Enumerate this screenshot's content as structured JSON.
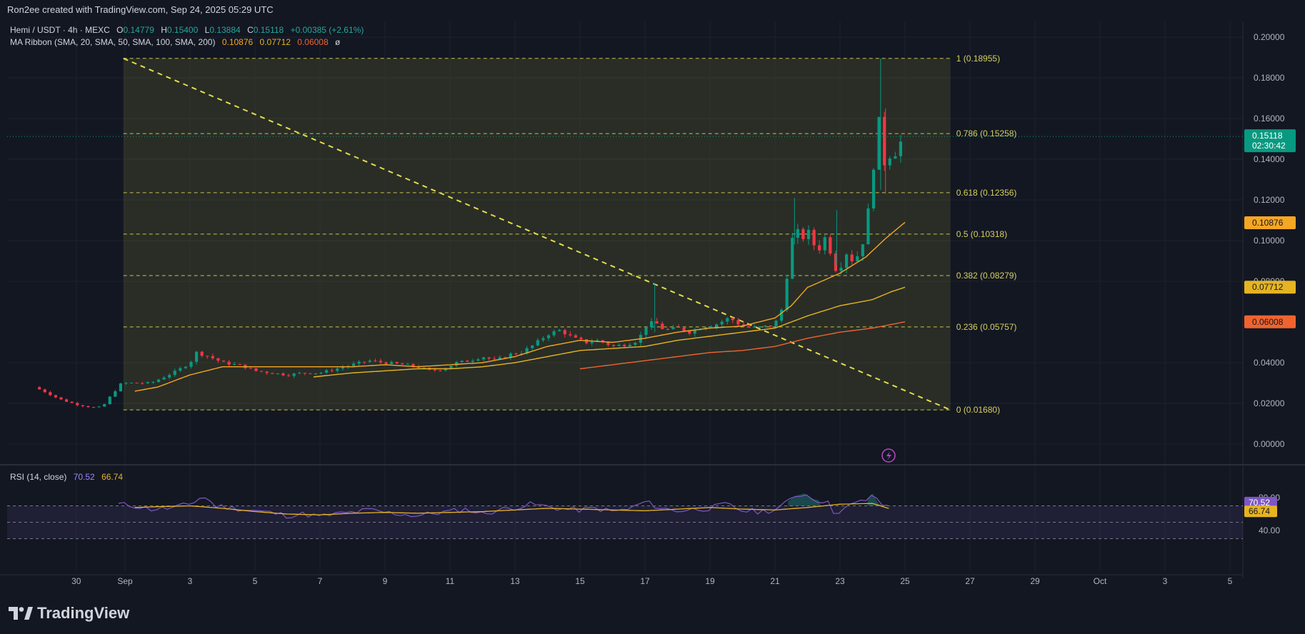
{
  "credit": "Ron2ee created with TradingView.com, Sep 24, 2025 05:29 UTC",
  "legend": {
    "symbol": "Hemi / USDT · 4h · MEXC",
    "o_label": "O",
    "o_val": "0.14779",
    "h_label": "H",
    "h_val": "0.15400",
    "l_label": "L",
    "l_val": "0.13884",
    "c_label": "C",
    "c_val": "0.15118",
    "change": "+0.00385 (+2.61%)",
    "ma_label": "MA Ribbon (SMA, 20, SMA, 50, SMA, 100, SMA, 200)",
    "ma1": "0.10876",
    "ma2": "0.07712",
    "ma3": "0.06008",
    "ma4": "ø",
    "rsi_label": "RSI (14, close)",
    "rsi1": "70.52",
    "rsi2": "66.74"
  },
  "brand": "TradingView",
  "chart_data": {
    "type": "candlestick",
    "timeframe": "4h",
    "price_axis": {
      "ticks": [
        "0.20000",
        "0.18000",
        "0.16000",
        "0.14000",
        "0.12000",
        "0.10000",
        "0.08000",
        "0.04000",
        "0.02000",
        "0.00000"
      ],
      "range": [
        0.0,
        0.205
      ]
    },
    "rsi_axis": {
      "ticks": [
        "80.00",
        "40.00"
      ],
      "range": [
        30,
        86
      ],
      "levels": [
        70,
        50,
        30
      ]
    },
    "x_axis": {
      "labels": [
        {
          "t": -1.5,
          "text": "30"
        },
        {
          "t": 0,
          "text": "Sep"
        },
        {
          "t": 2,
          "text": "3"
        },
        {
          "t": 4,
          "text": "5"
        },
        {
          "t": 6,
          "text": "7"
        },
        {
          "t": 8,
          "text": "9"
        },
        {
          "t": 10,
          "text": "11"
        },
        {
          "t": 12,
          "text": "13"
        },
        {
          "t": 14,
          "text": "15"
        },
        {
          "t": 16,
          "text": "17"
        },
        {
          "t": 18,
          "text": "19"
        },
        {
          "t": 20,
          "text": "21"
        },
        {
          "t": 22,
          "text": "23"
        },
        {
          "t": 24,
          "text": "25"
        },
        {
          "t": 26,
          "text": "27"
        },
        {
          "t": 28,
          "text": "29"
        },
        {
          "t": 30,
          "text": "Oct"
        },
        {
          "t": 32,
          "text": "3"
        },
        {
          "t": 34,
          "text": "5"
        }
      ],
      "range": [
        -3.2,
        34.0
      ]
    },
    "fib": {
      "x_start": -0.05,
      "x_end": 25.4,
      "levels": [
        {
          "ratio": "1",
          "price": 0.18955,
          "label": "1 (0.18955)"
        },
        {
          "ratio": "0.786",
          "price": 0.15258,
          "label": "0.786 (0.15258)"
        },
        {
          "ratio": "0.618",
          "price": 0.12356,
          "label": "0.618 (0.12356)"
        },
        {
          "ratio": "0.5",
          "price": 0.10318,
          "label": "0.5 (0.10318)"
        },
        {
          "ratio": "0.382",
          "price": 0.08279,
          "label": "0.382 (0.08279)"
        },
        {
          "ratio": "0.236",
          "price": 0.05757,
          "label": "0.236 (0.05757)"
        },
        {
          "ratio": "0",
          "price": 0.0168,
          "label": "0 (0.01680)"
        }
      ]
    },
    "trendline": {
      "t1": -0.05,
      "p1": 0.18955,
      "t2": 25.4,
      "p2": 0.0168
    },
    "price_anchors": [
      [
        -2.8,
        0.028
      ],
      [
        -2.5,
        0.026
      ],
      [
        -2.0,
        0.022
      ],
      [
        -1.5,
        0.0195
      ],
      [
        -1.0,
        0.018
      ],
      [
        -0.7,
        0.0182
      ],
      [
        -0.4,
        0.0245
      ],
      [
        -0.1,
        0.03
      ],
      [
        0.4,
        0.03
      ],
      [
        0.8,
        0.03
      ],
      [
        1.2,
        0.033
      ],
      [
        1.6,
        0.036
      ],
      [
        2.0,
        0.04
      ],
      [
        2.2,
        0.045
      ],
      [
        2.6,
        0.043
      ],
      [
        3.0,
        0.04
      ],
      [
        3.6,
        0.0385
      ],
      [
        4.0,
        0.036
      ],
      [
        4.5,
        0.035
      ],
      [
        5.0,
        0.034
      ],
      [
        5.5,
        0.035
      ],
      [
        6.0,
        0.035
      ],
      [
        6.5,
        0.037
      ],
      [
        7.0,
        0.039
      ],
      [
        7.5,
        0.041
      ],
      [
        8.0,
        0.04
      ],
      [
        8.6,
        0.039
      ],
      [
        9.0,
        0.038
      ],
      [
        9.4,
        0.036
      ],
      [
        9.8,
        0.037
      ],
      [
        10.2,
        0.04
      ],
      [
        10.6,
        0.041
      ],
      [
        11.0,
        0.043
      ],
      [
        11.4,
        0.041
      ],
      [
        11.8,
        0.044
      ],
      [
        12.2,
        0.045
      ],
      [
        12.6,
        0.049
      ],
      [
        13.0,
        0.054
      ],
      [
        13.4,
        0.056
      ],
      [
        13.8,
        0.052
      ],
      [
        14.2,
        0.05
      ],
      [
        14.6,
        0.051
      ],
      [
        15.0,
        0.048
      ],
      [
        15.4,
        0.049
      ],
      [
        15.8,
        0.051
      ],
      [
        16.0,
        0.058
      ],
      [
        16.3,
        0.06
      ],
      [
        16.6,
        0.056
      ],
      [
        17.0,
        0.057
      ],
      [
        17.4,
        0.055
      ],
      [
        17.8,
        0.058
      ],
      [
        18.2,
        0.059
      ],
      [
        18.6,
        0.062
      ],
      [
        19.0,
        0.058
      ],
      [
        19.4,
        0.057
      ],
      [
        19.8,
        0.058
      ],
      [
        20.0,
        0.059
      ],
      [
        20.2,
        0.066
      ],
      [
        20.4,
        0.086
      ],
      [
        20.6,
        0.108
      ],
      [
        20.8,
        0.1
      ],
      [
        21.0,
        0.105
      ],
      [
        21.2,
        0.098
      ],
      [
        21.4,
        0.096
      ],
      [
        21.6,
        0.104
      ],
      [
        21.8,
        0.086
      ],
      [
        22.0,
        0.087
      ],
      [
        22.2,
        0.094
      ],
      [
        22.4,
        0.09
      ],
      [
        22.6,
        0.094
      ],
      [
        22.8,
        0.105
      ],
      [
        23.0,
        0.133
      ],
      [
        23.2,
        0.158
      ],
      [
        23.3,
        0.133
      ],
      [
        23.45,
        0.145
      ],
      [
        23.6,
        0.14
      ],
      [
        23.8,
        0.147
      ],
      [
        24.0,
        0.151
      ]
    ],
    "series": [
      {
        "name": "SMA 20",
        "color": "#f5a623",
        "anchors": [
          [
            0.3,
            0.026
          ],
          [
            1.0,
            0.028
          ],
          [
            2.0,
            0.034
          ],
          [
            3.0,
            0.038
          ],
          [
            4.0,
            0.038
          ],
          [
            5.0,
            0.038
          ],
          [
            6.0,
            0.038
          ],
          [
            7.0,
            0.038
          ],
          [
            8.0,
            0.039
          ],
          [
            9.0,
            0.038
          ],
          [
            10.0,
            0.039
          ],
          [
            11.0,
            0.04
          ],
          [
            12.0,
            0.043
          ],
          [
            13.0,
            0.048
          ],
          [
            14.0,
            0.051
          ],
          [
            15.0,
            0.05
          ],
          [
            16.0,
            0.052
          ],
          [
            17.0,
            0.055
          ],
          [
            18.0,
            0.057
          ],
          [
            19.0,
            0.058
          ],
          [
            20.0,
            0.062
          ],
          [
            20.5,
            0.068
          ],
          [
            21.0,
            0.077
          ],
          [
            22.0,
            0.084
          ],
          [
            22.8,
            0.092
          ],
          [
            23.4,
            0.101
          ],
          [
            24.0,
            0.109
          ]
        ]
      },
      {
        "name": "SMA 50",
        "color": "#e6b422",
        "anchors": [
          [
            5.8,
            0.033
          ],
          [
            7.0,
            0.035
          ],
          [
            8.0,
            0.036
          ],
          [
            9.0,
            0.037
          ],
          [
            10.0,
            0.037
          ],
          [
            11.0,
            0.038
          ],
          [
            12.0,
            0.04
          ],
          [
            13.0,
            0.043
          ],
          [
            14.0,
            0.046
          ],
          [
            15.0,
            0.047
          ],
          [
            16.0,
            0.048
          ],
          [
            17.0,
            0.051
          ],
          [
            18.0,
            0.053
          ],
          [
            19.0,
            0.055
          ],
          [
            20.0,
            0.057
          ],
          [
            21.0,
            0.063
          ],
          [
            22.0,
            0.068
          ],
          [
            23.0,
            0.071
          ],
          [
            23.6,
            0.075
          ],
          [
            24.0,
            0.0771
          ]
        ]
      },
      {
        "name": "SMA 100",
        "color": "#f0632f",
        "anchors": [
          [
            14.0,
            0.037
          ],
          [
            15.0,
            0.039
          ],
          [
            16.0,
            0.041
          ],
          [
            17.0,
            0.043
          ],
          [
            18.0,
            0.045
          ],
          [
            19.0,
            0.046
          ],
          [
            20.0,
            0.048
          ],
          [
            21.0,
            0.052
          ],
          [
            22.0,
            0.055
          ],
          [
            23.0,
            0.057
          ],
          [
            24.0,
            0.0601
          ]
        ]
      }
    ],
    "rsi_anchors": [
      [
        -0.2,
        72
      ],
      [
        0.3,
        70
      ],
      [
        0.8,
        66
      ],
      [
        1.4,
        67
      ],
      [
        2.0,
        72
      ],
      [
        2.4,
        82
      ],
      [
        2.8,
        70
      ],
      [
        3.4,
        67
      ],
      [
        4.0,
        64
      ],
      [
        4.6,
        61
      ],
      [
        5.0,
        58
      ],
      [
        5.5,
        60
      ],
      [
        6.0,
        57
      ],
      [
        6.5,
        60
      ],
      [
        7.0,
        62
      ],
      [
        7.5,
        65
      ],
      [
        8.0,
        62
      ],
      [
        8.5,
        60
      ],
      [
        9.0,
        58
      ],
      [
        9.5,
        61
      ],
      [
        10.0,
        63
      ],
      [
        10.5,
        66
      ],
      [
        11.0,
        60
      ],
      [
        11.5,
        65
      ],
      [
        12.0,
        68
      ],
      [
        12.5,
        72
      ],
      [
        13.0,
        69
      ],
      [
        13.5,
        66
      ],
      [
        14.0,
        65
      ],
      [
        14.5,
        67
      ],
      [
        15.0,
        63
      ],
      [
        15.5,
        66
      ],
      [
        16.0,
        75
      ],
      [
        16.5,
        67
      ],
      [
        17.0,
        64
      ],
      [
        17.5,
        66
      ],
      [
        18.0,
        67
      ],
      [
        18.5,
        72
      ],
      [
        19.0,
        64
      ],
      [
        19.5,
        63
      ],
      [
        20.0,
        65
      ],
      [
        20.3,
        72
      ],
      [
        20.6,
        82
      ],
      [
        20.9,
        85
      ],
      [
        21.2,
        78
      ],
      [
        21.6,
        75
      ],
      [
        21.8,
        63
      ],
      [
        22.0,
        64
      ],
      [
        22.4,
        72
      ],
      [
        22.8,
        77
      ],
      [
        23.0,
        85
      ],
      [
        23.2,
        72
      ],
      [
        23.5,
        70.52
      ]
    ],
    "rsi_ma_anchors": [
      [
        0.3,
        68
      ],
      [
        1.0,
        69
      ],
      [
        2.0,
        70
      ],
      [
        3.0,
        67
      ],
      [
        4.0,
        63
      ],
      [
        5.0,
        60
      ],
      [
        6.0,
        59
      ],
      [
        7.0,
        61
      ],
      [
        8.0,
        62
      ],
      [
        9.0,
        61
      ],
      [
        10.0,
        62
      ],
      [
        11.0,
        63
      ],
      [
        12.0,
        65
      ],
      [
        13.0,
        67
      ],
      [
        14.0,
        66
      ],
      [
        15.0,
        65
      ],
      [
        16.0,
        64
      ],
      [
        17.0,
        66
      ],
      [
        18.0,
        68
      ],
      [
        19.0,
        66
      ],
      [
        20.0,
        65
      ],
      [
        21.0,
        68
      ],
      [
        22.0,
        72
      ],
      [
        23.0,
        73
      ],
      [
        23.5,
        66.74
      ]
    ],
    "price_tags": [
      {
        "text": "0.15118",
        "sub": "02:30:42",
        "price": 0.15118,
        "bg": "#089981"
      },
      {
        "text": "0.10876",
        "price": 0.10876,
        "bg": "#f5a623"
      },
      {
        "text": "0.07712",
        "price": 0.07712,
        "bg": "#e6b422"
      },
      {
        "text": "0.06008",
        "price": 0.06008,
        "bg": "#f0632f"
      }
    ],
    "rsi_tags": [
      {
        "text": "70.52",
        "value": 70.52,
        "bg": "#7e57c2"
      },
      {
        "text": "66.74",
        "value": 66.74,
        "bg": "#e6b422"
      }
    ]
  }
}
